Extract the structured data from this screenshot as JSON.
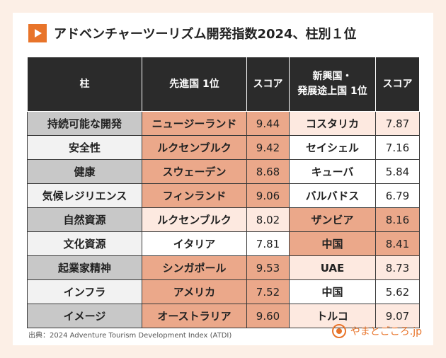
{
  "title": "アドベンチャーツーリズム開発指数2024、柱別１位",
  "colors": {
    "accent": "#e8742a",
    "header_bg": "#2b2b2b",
    "pillar_gray": "#c8c8c8",
    "pillar_light": "#f2f2f2",
    "shade_dark": "#eba88a",
    "shade_light": "#fde9e0",
    "shade_none": "#ffffff"
  },
  "table": {
    "headers": {
      "pillar": "柱",
      "developed": "先進国 1位",
      "score1": "スコア",
      "developing_line1": "新興国・",
      "developing_line2": "発展途上国 1位",
      "score2": "スコア"
    },
    "rows": [
      {
        "pillar": "持続可能な開発",
        "dev_country": "ニュージーランド",
        "dev_score": "9.44",
        "emg_country": "コスタリカ",
        "emg_score": "7.87"
      },
      {
        "pillar": "安全性",
        "dev_country": "ルクセンブルク",
        "dev_score": "9.42",
        "emg_country": "セイシェル",
        "emg_score": "7.16"
      },
      {
        "pillar": "健康",
        "dev_country": "スウェーデン",
        "dev_score": "8.68",
        "emg_country": "キューバ",
        "emg_score": "5.84"
      },
      {
        "pillar": "気候レジリエンス",
        "dev_country": "フィンランド",
        "dev_score": "9.06",
        "emg_country": "バルバドス",
        "emg_score": "6.79"
      },
      {
        "pillar": "自然資源",
        "dev_country": "ルクセンブルク",
        "dev_score": "8.02",
        "emg_country": "ザンビア",
        "emg_score": "8.16"
      },
      {
        "pillar": "文化資源",
        "dev_country": "イタリア",
        "dev_score": "7.81",
        "emg_country": "中国",
        "emg_score": "8.41"
      },
      {
        "pillar": "起業家精神",
        "dev_country": "シンガポール",
        "dev_score": "9.53",
        "emg_country": "UAE",
        "emg_score": "8.73"
      },
      {
        "pillar": "インフラ",
        "dev_country": "アメリカ",
        "dev_score": "7.52",
        "emg_country": "中国",
        "emg_score": "5.62"
      },
      {
        "pillar": "イメージ",
        "dev_country": "オーストラリア",
        "dev_score": "9.60",
        "emg_country": "トルコ",
        "emg_score": "9.07"
      }
    ]
  },
  "source": "出典：2024 Adventure Tourism Development Index (ATDI)",
  "brand": "やまとごころ.jp"
}
